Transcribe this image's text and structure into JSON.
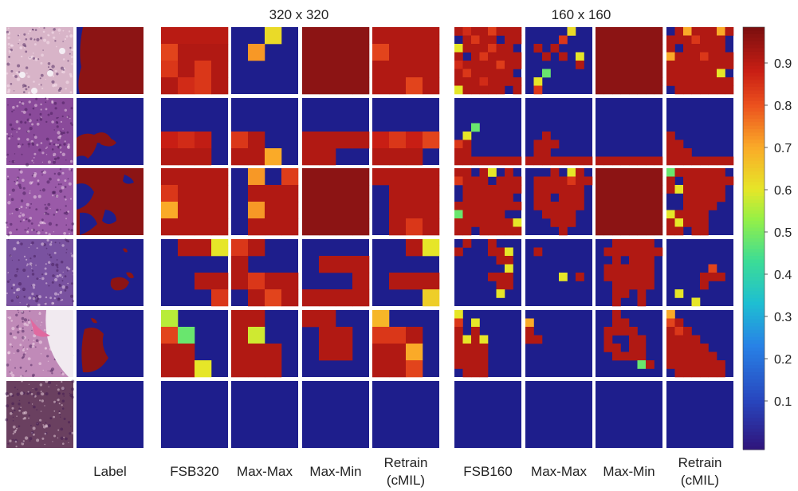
{
  "chart_data": {
    "type": "heatmap",
    "group_titles": [
      "320 x 320",
      "160 x 160"
    ],
    "column_labels": [
      [
        "Label"
      ],
      [
        "FSB320"
      ],
      [
        "Max-Max"
      ],
      [
        "Max-Min"
      ],
      [
        "Retrain",
        "(cMIL)"
      ],
      [
        "FSB160"
      ],
      [
        "Max-Max"
      ],
      [
        "Max-Min"
      ],
      [
        "Retrain",
        "(cMIL)"
      ]
    ],
    "colorbar": {
      "colormap": "turbo-like (blue - cyan - yellow - red - dark red)",
      "range": [
        0.0,
        1.0
      ],
      "ticks": [
        "0.1",
        "0.2",
        "0.3",
        "0.4",
        "0.5",
        "0.6",
        "0.7",
        "0.8",
        "0.9"
      ]
    },
    "colors": {
      "background": "#1e1e8c",
      "foreground": "#8c1414"
    },
    "grid_320": [
      [
        [
          [
            0.92,
            0.92,
            0.92,
            0.92
          ],
          [
            0.84,
            0.93,
            0.93,
            0.93
          ],
          [
            0.86,
            0.93,
            0.86,
            0.93
          ],
          [
            0.93,
            0.88,
            0.86,
            0.93
          ]
        ],
        [
          [
            0,
            0,
            0.64,
            0
          ],
          [
            0,
            0.74,
            0,
            0
          ],
          [
            0,
            0,
            0,
            0
          ],
          [
            0,
            0,
            0,
            0
          ]
        ],
        [
          [
            1,
            1,
            1,
            1
          ],
          [
            1,
            1,
            1,
            1
          ],
          [
            1,
            1,
            1,
            1
          ],
          [
            1,
            1,
            1,
            1
          ]
        ],
        [
          [
            0.93,
            0.93,
            0.93,
            0.93
          ],
          [
            0.84,
            0.93,
            0.93,
            0.93
          ],
          [
            0.93,
            0.93,
            0.93,
            0.93
          ],
          [
            0.93,
            0.93,
            0.84,
            0.93
          ]
        ]
      ],
      [
        [
          [
            0,
            0,
            0,
            0
          ],
          [
            0,
            0,
            0,
            0
          ],
          [
            0.9,
            0.88,
            0.91,
            0
          ],
          [
            0.93,
            0.93,
            0.93,
            0
          ]
        ],
        [
          [
            0,
            0,
            0,
            0
          ],
          [
            0,
            0,
            0,
            0
          ],
          [
            0.86,
            0.93,
            0,
            0
          ],
          [
            0.93,
            0.93,
            0.72,
            0
          ]
        ],
        [
          [
            0,
            0,
            0,
            0
          ],
          [
            0,
            0,
            0,
            0
          ],
          [
            0.93,
            0.93,
            0.93,
            0.93
          ],
          [
            0.93,
            0.93,
            0,
            0
          ]
        ],
        [
          [
            0,
            0,
            0,
            0
          ],
          [
            0,
            0,
            0,
            0
          ],
          [
            0.9,
            0.86,
            0.9,
            0.84
          ],
          [
            0.93,
            0.93,
            0.93,
            0
          ]
        ]
      ],
      [
        [
          [
            0.93,
            0.93,
            0.93,
            0.93
          ],
          [
            0.86,
            0.93,
            0.93,
            0.93
          ],
          [
            0.72,
            0.93,
            0.93,
            0.93
          ],
          [
            0.93,
            0.93,
            0.93,
            0.93
          ]
        ],
        [
          [
            0,
            0.74,
            0,
            0.85
          ],
          [
            0,
            0.93,
            0.93,
            0.93
          ],
          [
            0,
            0.74,
            0.93,
            0.93
          ],
          [
            0,
            0.93,
            0.93,
            0.93
          ]
        ],
        [
          [
            1,
            1,
            1,
            1
          ],
          [
            1,
            1,
            1,
            1
          ],
          [
            1,
            1,
            1,
            1
          ],
          [
            1,
            1,
            1,
            1
          ]
        ],
        [
          [
            0.93,
            0.93,
            0.93,
            0.93
          ],
          [
            0,
            0.93,
            0.93,
            0.93
          ],
          [
            0,
            0.93,
            0.93,
            0.93
          ],
          [
            0,
            0.93,
            0.86,
            0.93
          ]
        ]
      ],
      [
        [
          [
            0,
            0.93,
            0.93,
            0.62
          ],
          [
            0,
            0,
            0,
            0
          ],
          [
            0,
            0,
            0.93,
            0.93
          ],
          [
            0,
            0,
            0,
            0.86
          ]
        ],
        [
          [
            0.86,
            0.93,
            0,
            0
          ],
          [
            0.93,
            0,
            0,
            0
          ],
          [
            0.93,
            0.86,
            0.93,
            0.93
          ],
          [
            0,
            0.93,
            0.84,
            0.93
          ]
        ],
        [
          [
            0,
            0,
            0,
            0
          ],
          [
            0,
            0.93,
            0.93,
            0.93
          ],
          [
            0,
            0,
            0,
            0.93
          ],
          [
            0.93,
            0.93,
            0.93,
            0.93
          ]
        ],
        [
          [
            0,
            0,
            0.93,
            0.62
          ],
          [
            0,
            0,
            0,
            0
          ],
          [
            0,
            0.93,
            0.93,
            0.93
          ],
          [
            0,
            0,
            0,
            0.66
          ]
        ]
      ],
      [
        [
          [
            0.58,
            0,
            0,
            0
          ],
          [
            0.84,
            0.5,
            0,
            0
          ],
          [
            0.93,
            0.93,
            0,
            0
          ],
          [
            0.93,
            0.93,
            0.62,
            0
          ]
        ],
        [
          [
            0.93,
            0.93,
            0,
            0
          ],
          [
            0.93,
            0.6,
            0,
            0
          ],
          [
            0.93,
            0.93,
            0.93,
            0
          ],
          [
            0.93,
            0.93,
            0.93,
            0
          ]
        ],
        [
          [
            0.93,
            0.93,
            0,
            0
          ],
          [
            0,
            0.93,
            0.93,
            0
          ],
          [
            0,
            0.93,
            0.93,
            0
          ],
          [
            0,
            0,
            0,
            0
          ]
        ],
        [
          [
            0.7,
            0,
            0,
            0
          ],
          [
            0.86,
            0.86,
            0.93,
            0
          ],
          [
            0.93,
            0.93,
            0.72,
            0
          ],
          [
            0.93,
            0.93,
            0.84,
            0
          ]
        ]
      ],
      [
        [
          [
            0,
            0,
            0,
            0
          ],
          [
            0,
            0,
            0,
            0
          ],
          [
            0,
            0,
            0,
            0
          ],
          [
            0,
            0,
            0,
            0
          ]
        ],
        [
          [
            0,
            0,
            0,
            0
          ],
          [
            0,
            0,
            0,
            0
          ],
          [
            0,
            0,
            0,
            0
          ],
          [
            0,
            0,
            0,
            0
          ]
        ],
        [
          [
            0,
            0,
            0,
            0
          ],
          [
            0,
            0,
            0,
            0
          ],
          [
            0,
            0,
            0,
            0
          ],
          [
            0,
            0,
            0,
            0
          ]
        ],
        [
          [
            0,
            0,
            0,
            0
          ],
          [
            0,
            0,
            0,
            0
          ],
          [
            0,
            0,
            0,
            0
          ],
          [
            0,
            0,
            0,
            0
          ]
        ]
      ]
    ],
    "grid_160": [
      [
        [
          "0.93,0.88,0.93,0.93,0.85,0.93,0.93,0.93",
          "0,0.93,0.86,0.93,0.93,0,0.93,0.93",
          "0.62,0.93,0.93,0.93,0.86,0.93,0.93,0",
          "0.93,0,0.93,0.86,0.93,0.93,0.93,0.93",
          "0.88,0.93,0.93,0.93,0.93,0.85,0.93,0.93",
          "0.93,0.86,0.93,0.93,0.93,0.93,0.93,0",
          "0.93,0.93,0.93,0.88,0.93,0.93,0.93,0.93",
          "0.62,0.93,0.93,0.93,0.93,0.93,0,0.93"
        ],
        [
          "0,0,0,0,0,0.64,0,0",
          "0,0,0,0,0.86,0,0,0",
          "0,0.93,0,0.93,0,0,0,0",
          "0,0,0.93,0,0.93,0,0.62,0",
          "0,0,0,0,0,0,0.93,0",
          "0,0,0.5,0,0,0,0,0",
          "0,0.62,0,0,0,0,0,0",
          "0,0.86,0,0,0,0,0,0"
        ],
        [
          "1,1,1,1,1,1,1,1",
          "1,1,1,1,1,1,1,1",
          "1,1,1,1,1,1,1,1",
          "1,1,1,1,1,1,1,1",
          "1,1,1,1,1,1,1,1",
          "1,1,1,1,1,1,1,1",
          "1,1,1,1,1,1,1,1",
          "1,1,1,1,1,1,1,1"
        ],
        [
          "0,0.93,0.72,0.93,0.93,0.93,0.72,0.93",
          "0.93,0.93,0.93,0.86,0.93,0.93,0.93,0",
          "0.93,0,0.93,0.93,0.93,0.93,0.93,0",
          "0.72,0.93,0.93,0.93,0.86,0.93,0.93,0.93",
          "0.93,0.93,0.93,0.93,0.93,0.93,0.93,0.93",
          "0.93,0.93,0.93,0.93,0.93,0.93,0.62,0",
          "0.93,0.93,0.93,0.93,0.93,0.93,0.93,0.93",
          "0,0.93,0.93,0.93,0.93,0.93,0.93,0.93"
        ]
      ],
      [
        [
          "0,0,0,0,0,0,0,0",
          "0,0,0,0,0,0,0,0",
          "0,0,0,0,0,0,0,0",
          "0,0,0.5,0,0,0,0,0",
          "0,0.62,0,0,0,0,0,0",
          "0.86,0.93,0,0,0,0,0,0",
          "0.93,0.93,0,0,0,0,0,0",
          "0.93,0.93,0.93,0.93,0.93,0.93,0.93,0.93"
        ],
        [
          "0,0,0,0,0,0,0,0",
          "0,0,0,0,0,0,0,0",
          "0,0,0,0,0,0,0,0",
          "0,0,0,0,0,0,0,0",
          "0,0,0.93,0,0,0,0,0",
          "0,0.93,0.93,0.93,0,0,0,0",
          "0,0.93,0.93,0,0,0,0,0",
          "0.93,0.93,0.93,0.93,0.93,0.93,0.93,0.93"
        ],
        [
          "0,0,0,0,0,0,0,0",
          "0,0,0,0,0,0,0,0",
          "0,0,0,0,0,0,0,0",
          "0,0,0,0,0,0,0,0",
          "0,0,0,0,0,0,0,0",
          "0,0,0,0,0,0,0,0",
          "0,0,0,0,0,0,0,0",
          "0.93,0.93,0.93,0.93,0.93,0.93,0.93,0.93"
        ],
        [
          "0,0,0,0,0,0,0,0",
          "0,0,0,0,0,0,0,0",
          "0,0,0,0,0,0,0,0",
          "0,0,0,0,0,0,0,0",
          "0.93,0,0,0,0,0,0,0",
          "0.93,0.93,0,0,0,0,0,0",
          "0.93,0.93,0.93,0,0,0,0,0",
          "0.93,0.93,0.93,0.93,0.93,0.93,0.93,0.93"
        ]
      ],
      [
        [
          "0.93,0.93,0,0.93,0.62,0,0.93,0",
          "0.86,0.93,0.93,0.93,0,0.93,0.93,0.93",
          "0,0.93,0.93,0.93,0.93,0.93,0.93,0.93",
          "0,0.93,0.93,0.93,0.93,0.93,0.93,0",
          "0.93,0.93,0.93,0.93,0.93,0.93,0.93,0.93",
          "0.5,0.93,0.93,0.93,0.93,0.93,0,0",
          "0.93,0.93,0.93,0.93,0.93,0.93,0.93,0.62",
          "0.93,0.93,0,0.93,0.93,0.93,0.93,0.93"
        ],
        [
          "0,0,0,0.93,0,0.62,0.93,0",
          "0,0.93,0.93,0.93,0.93,0.86,0.93,0.93",
          "0,0.93,0.93,0.93,0.93,0.93,0.93,0",
          "0,0.93,0.93,0,0.93,0.93,0.93,0",
          "0,0.93,0.93,0.93,0.93,0.93,0.93,0",
          "0,0,0.93,0.93,0.93,0.93,0,0",
          "0,0,0,0.93,0.93,0.93,0,0",
          "0,0,0,0,0.93,0,0,0"
        ],
        [
          "1,1,1,1,1,1,1,1",
          "1,1,1,1,1,1,1,1",
          "1,1,1,1,1,1,1,1",
          "1,1,1,1,1,1,1,1",
          "1,1,1,1,1,1,1,1",
          "1,1,1,1,1,1,1,1",
          "1,1,1,1,1,1,1,1",
          "1,1,1,1,1,1,1,1"
        ],
        [
          "0.5,0.93,0.93,0.93,0.93,0.93,0.93,0",
          "0.93,0,0.93,0.93,0.93,0.93,0.93,0.93",
          "0.93,0.62,0.93,0.93,0.93,0.93,0.93,0",
          "0,0,0.93,0.93,0.93,0.93,0.93,0",
          "0,0,0.93,0.93,0.93,0.93,0,0",
          "0.62,0.93,0.93,0.93,0.93,0,0,0",
          "0.93,0.62,0.93,0.93,0.93,0,0,0",
          "0.93,0.93,0,0.93,0.93,0,0,0"
        ]
      ],
      [
        [
          "0,0.93,0,0,0.93,0,0,0",
          "0.93,0,0,0,0.93,0.93,0.62,0",
          "0,0,0,0,0,0.93,0.93,0",
          "0,0,0,0,0,0,0.62,0",
          "0,0,0,0,0.93,0.93,0.93,0",
          "0,0,0,0,0,0.93,0.93,0",
          "0,0,0,0,0,0.62,0,0",
          "0,0,0,0,0,0,0,0"
        ],
        [
          "0,0,0,0,0,0,0,0",
          "0,0.93,0,0,0,0,0,0",
          "0,0,0,0,0,0,0,0",
          "0,0,0,0,0,0,0,0",
          "0,0,0,0,0.62,0,0.93,0",
          "0,0,0,0,0,0,0,0",
          "0,0,0,0,0,0,0,0",
          "0,0,0,0,0,0,0,0"
        ],
        [
          "0,0,0.93,0.93,0.93,0.93,0.93,0",
          "0,0.93,0.93,0.93,0.93,0.93,0.93,0.93",
          "0,0,0.93,0,0.93,0.93,0.93,0",
          "0,0.93,0.93,0.93,0.93,0.93,0.93,0",
          "0,0.93,0.93,0.93,0.93,0.93,0.93,0",
          "0,0,0.93,0.93,0.93,0.93,0.93,0",
          "0,0,0.93,0.93,0,0.93,0,0",
          "0,0,0.93,0,0,0.93,0,0"
        ],
        [
          "0,0,0,0,0,0,0,0",
          "0,0,0,0,0,0,0,0",
          "0,0,0,0,0,0,0,0",
          "0,0,0,0,0,0.84,0,0",
          "0,0,0,0,0.93,0.93,0.93,0",
          "0,0,0,0,0.93,0,0,0",
          "0,0.62,0,0,0,0,0,0",
          "0,0,0,0.62,0,0,0,0"
        ]
      ],
      [
        [
          "0.62,0,0,0,0,0,0,0",
          "0.86,0,0.62,0,0,0,0,0",
          "0.93,0,0.93,0,0,0,0,0",
          "0.93,0.62,0.93,0.62,0,0,0,0",
          "0.93,0.93,0.93,0.93,0,0,0,0",
          "0.93,0.93,0.93,0.93,0,0,0,0",
          "0.93,0.93,0.93,0.93,0,0,0,0",
          "0,0.93,0.93,0.93,0,0,0,0"
        ],
        [
          "0,0,0,0,0,0,0,0",
          "0.72,0,0,0,0,0,0,0",
          "0.93,0,0,0,0,0,0,0",
          "0.93,0.93,0,0,0,0,0,0",
          "0,0,0,0,0,0,0,0",
          "0,0,0,0,0,0,0,0",
          "0,0,0,0,0,0,0,0",
          "0,0,0,0,0,0,0,0"
        ],
        [
          "0,0,0.93,0,0,0,0,0",
          "0,0,0.93,0.93,0,0,0,0",
          "0,0.93,0.93,0.93,0.93,0,0,0",
          "0,0.93,0,0,0.93,0.93,0,0",
          "0,0.93,0.93,0,0.93,0.93,0,0",
          "0,0,0.93,0.93,0.93,0.93,0,0",
          "0,0,0,0,0,0.5,0.93,0",
          "0,0,0,0,0,0,0,0"
        ],
        [
          "0.72,0,0,0,0,0,0,0",
          "0.84,0.93,0,0,0,0,0,0",
          "0.93,0.86,0.93,0,0,0,0,0",
          "0.93,0.93,0.93,0.93,0,0,0,0",
          "0.93,0.93,0.93,0.93,0.93,0,0,0",
          "0.93,0.93,0.93,0.93,0.93,0.93,0,0",
          "0.93,0.93,0.93,0.93,0.93,0.93,0.93,0",
          "0,0.93,0.93,0.93,0.93,0.93,0.93,0"
        ]
      ],
      [
        [
          "0,0,0,0,0,0,0,0",
          "0,0,0,0,0,0,0,0",
          "0,0,0,0,0,0,0,0",
          "0,0,0,0,0,0,0,0",
          "0,0,0,0,0,0,0,0",
          "0,0,0,0,0,0,0,0",
          "0,0,0,0,0,0,0,0",
          "0,0,0,0,0,0,0,0"
        ],
        [
          "0,0,0,0,0,0,0,0",
          "0,0,0,0,0,0,0,0",
          "0,0,0,0,0,0,0,0",
          "0,0,0,0,0,0,0,0",
          "0,0,0,0,0,0,0,0",
          "0,0,0,0,0,0,0,0",
          "0,0,0,0,0,0,0,0",
          "0,0,0,0,0,0,0,0"
        ],
        [
          "0,0,0,0,0,0,0,0",
          "0,0,0,0,0,0,0,0",
          "0,0,0,0,0,0,0,0",
          "0,0,0,0,0,0,0,0",
          "0,0,0,0,0,0,0,0",
          "0,0,0,0,0,0,0,0",
          "0,0,0,0,0,0,0,0",
          "0,0,0,0,0,0,0,0"
        ],
        [
          "0,0,0,0,0,0,0,0",
          "0,0,0,0,0,0,0,0",
          "0,0,0,0,0,0,0,0",
          "0,0,0,0,0,0,0,0",
          "0,0,0,0,0,0,0,0",
          "0,0,0,0,0,0,0,0",
          "0,0,0,0,0,0,0,0",
          "0,0,0,0,0,0,0,0"
        ]
      ]
    ],
    "label_masks": [
      "foreground-mostly",
      "blob-lower-left",
      "foreground-mostly-with-gaps",
      "sparse-spots",
      "small-blob-left",
      "background-only"
    ],
    "thumbnail_tones": [
      "#d8b4c8",
      "#8a4a9a",
      "#9a5aa8",
      "#7a52a0",
      "#c08ab8",
      "#6a4060"
    ]
  }
}
